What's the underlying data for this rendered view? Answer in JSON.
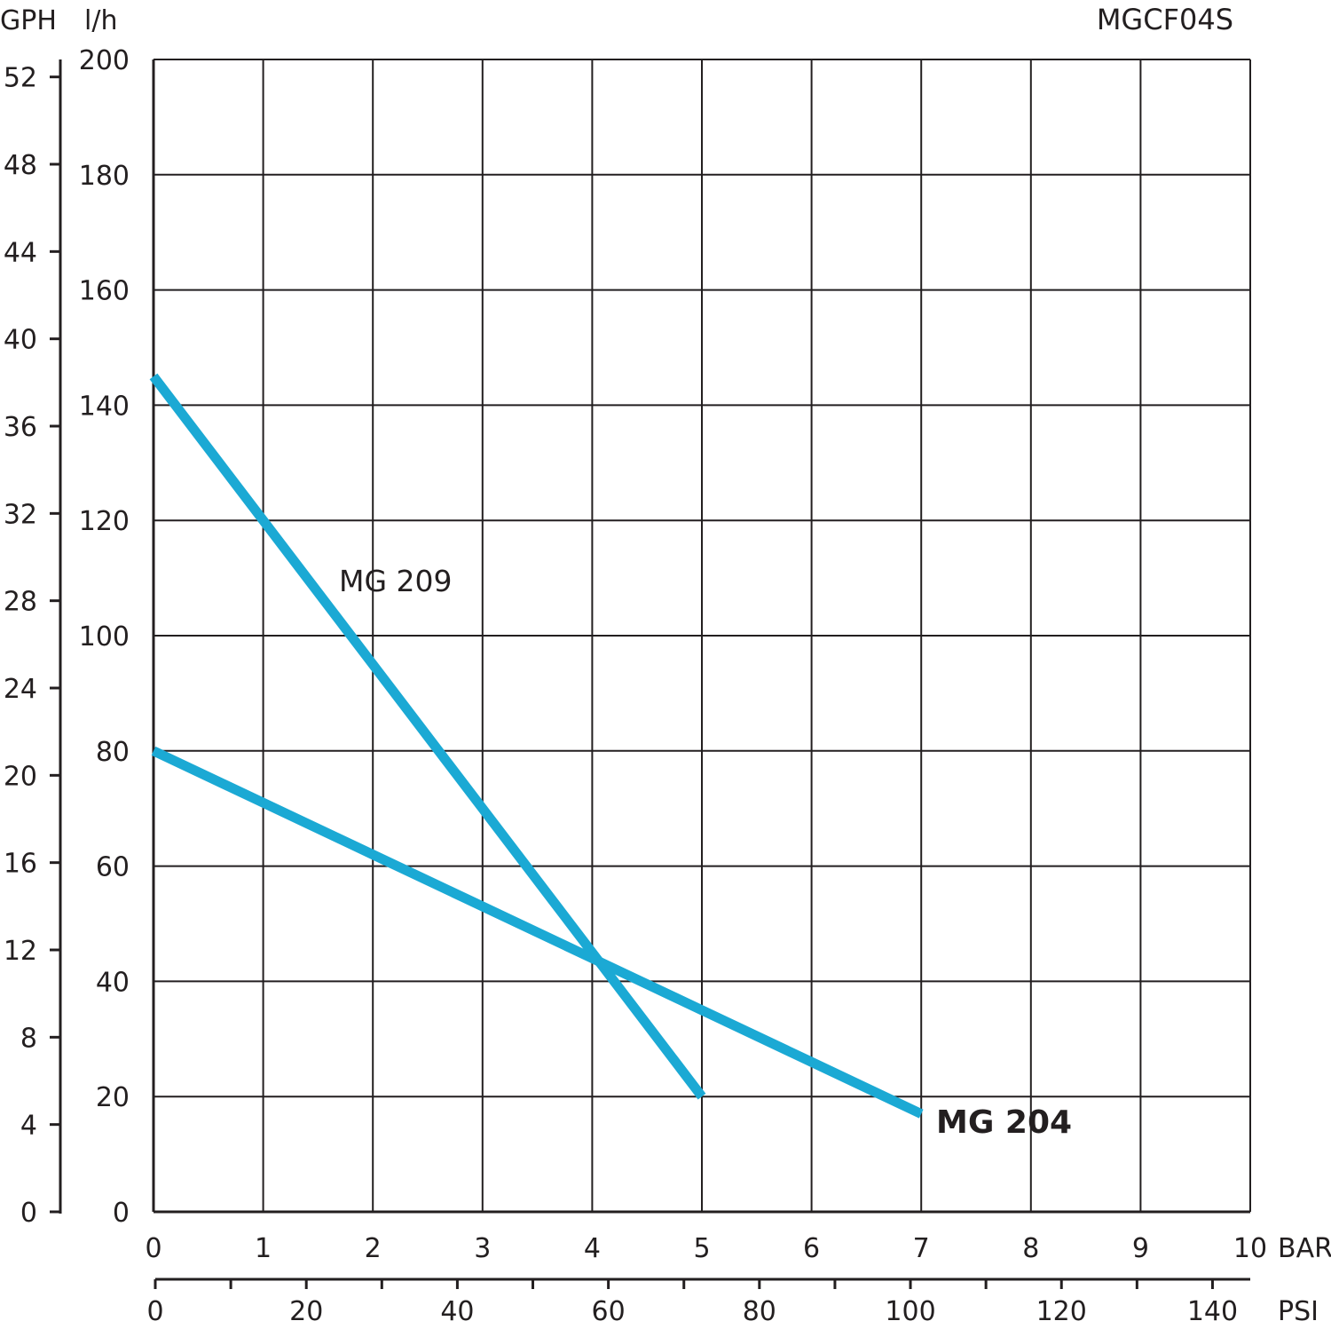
{
  "chart_data": {
    "type": "line",
    "model_code": "MGCF04S",
    "units": {
      "gph": "GPH",
      "lh": "l/h",
      "bar": "BAR",
      "psi": "PSI"
    },
    "x_bar": {
      "min": 0,
      "max": 10,
      "ticks": [
        "0",
        "1",
        "2",
        "3",
        "4",
        "5",
        "6",
        "7",
        "8",
        "9",
        "10"
      ]
    },
    "x_psi": {
      "min": 0,
      "max": 145,
      "labels": [
        "0",
        "20",
        "40",
        "60",
        "80",
        "100",
        "120",
        "140"
      ]
    },
    "y_lh": {
      "min": 0,
      "max": 200,
      "ticks": [
        "0",
        "20",
        "40",
        "60",
        "80",
        "100",
        "120",
        "140",
        "160",
        "180",
        "200"
      ]
    },
    "y_gph": {
      "min": 0,
      "max": 52.8,
      "labels": [
        "0",
        "4",
        "8",
        "12",
        "16",
        "20",
        "24",
        "28",
        "32",
        "36",
        "40",
        "44",
        "48",
        "52"
      ]
    },
    "grid": true,
    "series": [
      {
        "name": "MG 209",
        "color": "#1ba9d4",
        "points": [
          [
            0,
            145
          ],
          [
            1,
            120
          ],
          [
            2,
            95
          ],
          [
            3,
            70
          ],
          [
            4,
            45
          ],
          [
            5,
            20
          ]
        ]
      },
      {
        "name": "MG 204",
        "color": "#1ba9d4",
        "points": [
          [
            0,
            80
          ],
          [
            1,
            71
          ],
          [
            2,
            62
          ],
          [
            3,
            53
          ],
          [
            4,
            44
          ],
          [
            5,
            35
          ],
          [
            6,
            26
          ],
          [
            7,
            17
          ]
        ]
      }
    ]
  }
}
